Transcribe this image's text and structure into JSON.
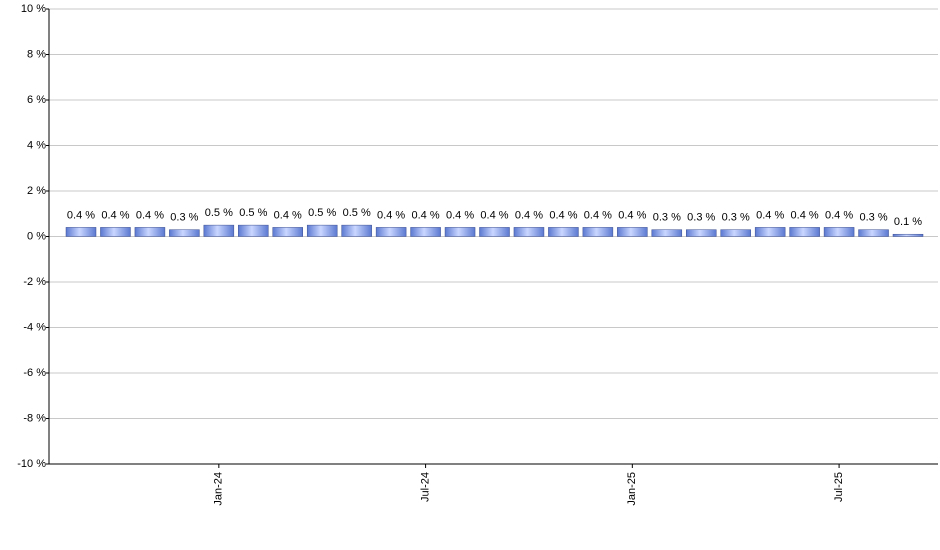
{
  "chart_data": {
    "type": "bar",
    "categories": [
      null,
      null,
      null,
      null,
      "Jan-24",
      null,
      null,
      null,
      null,
      null,
      "Jul-24",
      null,
      null,
      null,
      null,
      null,
      "Jan-25",
      null,
      null,
      null,
      null,
      null,
      "Jul-25",
      null,
      null
    ],
    "values": [
      0.4,
      0.4,
      0.4,
      0.3,
      0.5,
      0.5,
      0.4,
      0.5,
      0.5,
      0.4,
      0.4,
      0.4,
      0.4,
      0.4,
      0.4,
      0.4,
      0.4,
      0.3,
      0.3,
      0.3,
      0.4,
      0.4,
      0.4,
      0.3,
      0.1
    ],
    "value_labels": [
      "0.4 %",
      "0.4 %",
      "0.4 %",
      "0.3 %",
      "0.5 %",
      "0.5 %",
      "0.4 %",
      "0.5 %",
      "0.5 %",
      "0.4 %",
      "0.4 %",
      "0.4 %",
      "0.4 %",
      "0.4 %",
      "0.4 %",
      "0.4 %",
      "0.4 %",
      "0.3 %",
      "0.3 %",
      "0.3 %",
      "0.4 %",
      "0.4 %",
      "0.4 %",
      "0.3 %",
      "0.1 %"
    ],
    "color": "#5a78d0",
    "ylim": [
      -10,
      10
    ],
    "yticks": [
      {
        "value": -10,
        "label": "-10 %"
      },
      {
        "value": -8,
        "label": "-8 %"
      },
      {
        "value": -6,
        "label": "-6 %"
      },
      {
        "value": -4,
        "label": "-4 %"
      },
      {
        "value": -2,
        "label": "-2 %"
      },
      {
        "value": 0,
        "label": "0 %"
      },
      {
        "value": 2,
        "label": "2 %"
      },
      {
        "value": 4,
        "label": "4 %"
      },
      {
        "value": 6,
        "label": "6 %"
      },
      {
        "value": 8,
        "label": "8 %"
      },
      {
        "value": 10,
        "label": "10 %"
      }
    ],
    "grid": true
  }
}
